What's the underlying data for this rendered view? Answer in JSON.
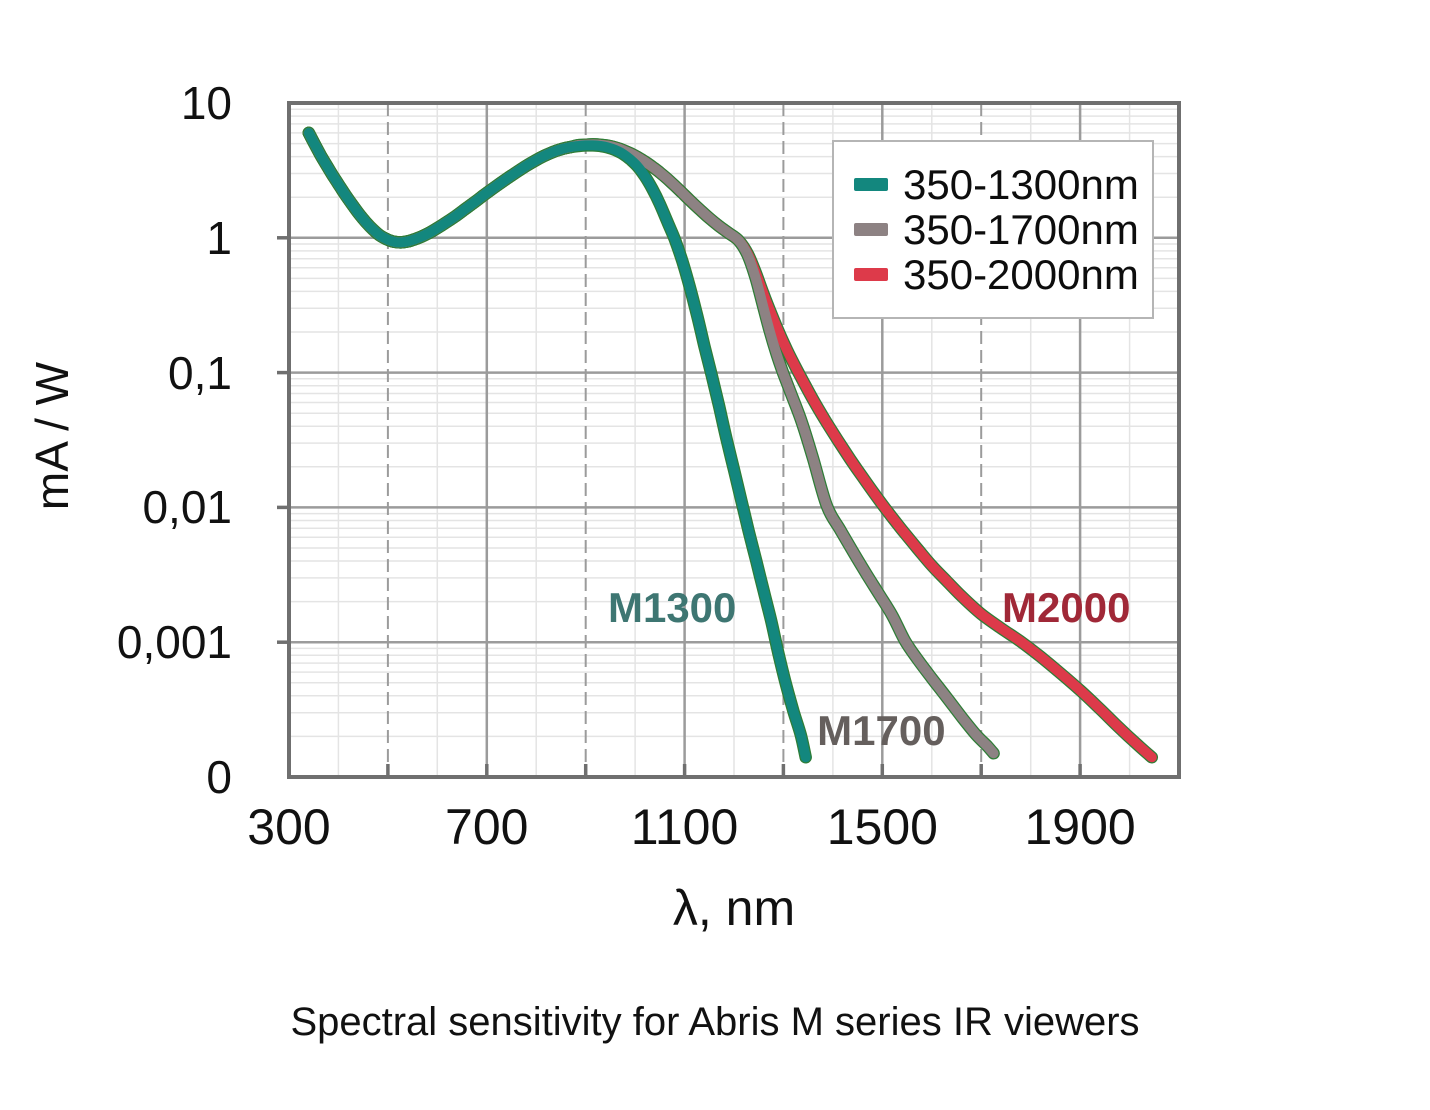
{
  "caption": "Spectral sensitivity for Abris M series IR viewers",
  "chart_data": {
    "type": "line",
    "title": "",
    "x_axis_title": "λ, nm",
    "y_axis_title": "mA / W",
    "y_scale": "log",
    "x_range_nm": [
      300,
      2100
    ],
    "y_range": [
      0.0001,
      10
    ],
    "x_ticks": [
      "300",
      "700",
      "1100",
      "1500",
      "1900"
    ],
    "x_tick_values": [
      300,
      700,
      1100,
      1500,
      1900
    ],
    "y_ticks": [
      "10",
      "1",
      "0,1",
      "0,01",
      "0,001",
      "0"
    ],
    "y_tick_values": [
      10,
      1,
      0.1,
      0.01,
      0.001,
      0.0001
    ],
    "grid": {
      "x_major_nm": [
        700,
        1100,
        1500,
        1900
      ],
      "x_dashed_nm": [
        500,
        900,
        1300,
        1700
      ],
      "x_minor_nm": [
        400,
        600,
        800,
        1000,
        1200,
        1400,
        1600,
        1800,
        2000
      ],
      "y_major": [
        1,
        0.1,
        0.01,
        0.001
      ]
    },
    "axis_ticks": {
      "x_nm": [
        500,
        700,
        900,
        1100,
        1300,
        1500,
        1700,
        1900
      ],
      "y": [
        1,
        0.1,
        0.01,
        0.001
      ]
    },
    "colors": {
      "grid_major": "#9b9b9b",
      "grid_dashed": "#9b9b9b",
      "grid_minor": "#e4e4e4",
      "frame": "#6f6f6f",
      "text": "#111111",
      "curve_under_edge": "#2e7d36"
    },
    "legend": {
      "position": "top-right"
    },
    "series": [
      {
        "name": "M1300",
        "legend_label": "350-1300nm",
        "color": "#13877e",
        "label_color": "#3e7672",
        "points": [
          [
            340,
            6.0
          ],
          [
            352,
            4.95
          ],
          [
            364,
            4.1
          ],
          [
            376,
            3.45
          ],
          [
            388,
            2.92
          ],
          [
            400,
            2.5
          ],
          [
            414,
            2.08
          ],
          [
            428,
            1.76
          ],
          [
            442,
            1.5
          ],
          [
            456,
            1.3
          ],
          [
            470,
            1.15
          ],
          [
            484,
            1.04
          ],
          [
            498,
            0.975
          ],
          [
            512,
            0.935
          ],
          [
            526,
            0.925
          ],
          [
            540,
            0.94
          ],
          [
            554,
            0.975
          ],
          [
            568,
            1.02
          ],
          [
            582,
            1.08
          ],
          [
            600,
            1.18
          ],
          [
            618,
            1.3
          ],
          [
            636,
            1.44
          ],
          [
            654,
            1.61
          ],
          [
            672,
            1.8
          ],
          [
            690,
            2.02
          ],
          [
            708,
            2.26
          ],
          [
            726,
            2.52
          ],
          [
            744,
            2.8
          ],
          [
            762,
            3.1
          ],
          [
            780,
            3.42
          ],
          [
            798,
            3.74
          ],
          [
            816,
            4.05
          ],
          [
            834,
            4.33
          ],
          [
            852,
            4.56
          ],
          [
            870,
            4.72
          ],
          [
            885,
            4.8
          ],
          [
            900,
            4.85
          ],
          [
            915,
            4.85
          ],
          [
            930,
            4.8
          ],
          [
            945,
            4.68
          ],
          [
            960,
            4.48
          ],
          [
            975,
            4.2
          ],
          [
            990,
            3.82
          ],
          [
            1005,
            3.38
          ],
          [
            1020,
            2.85
          ],
          [
            1035,
            2.3
          ],
          [
            1050,
            1.78
          ],
          [
            1065,
            1.32
          ],
          [
            1080,
            0.98
          ],
          [
            1095,
            0.68
          ],
          [
            1110,
            0.44
          ],
          [
            1125,
            0.27
          ],
          [
            1140,
            0.158
          ],
          [
            1155,
            0.095
          ],
          [
            1170,
            0.056
          ],
          [
            1185,
            0.032
          ],
          [
            1200,
            0.019
          ],
          [
            1215,
            0.0112
          ],
          [
            1230,
            0.0066
          ],
          [
            1245,
            0.004
          ],
          [
            1260,
            0.0024
          ],
          [
            1275,
            0.00145
          ],
          [
            1290,
            0.00082
          ],
          [
            1305,
            0.00049
          ],
          [
            1320,
            0.00031
          ],
          [
            1335,
            0.000205
          ],
          [
            1345,
            0.00014
          ]
        ]
      },
      {
        "name": "M1700",
        "legend_label": "350-1700nm",
        "color": "#8d8283",
        "label_color": "#655f5d",
        "points": [
          [
            340,
            6.0
          ],
          [
            352,
            4.95
          ],
          [
            364,
            4.1
          ],
          [
            376,
            3.45
          ],
          [
            388,
            2.92
          ],
          [
            400,
            2.5
          ],
          [
            414,
            2.08
          ],
          [
            428,
            1.76
          ],
          [
            442,
            1.5
          ],
          [
            456,
            1.3
          ],
          [
            470,
            1.15
          ],
          [
            484,
            1.04
          ],
          [
            498,
            0.975
          ],
          [
            512,
            0.935
          ],
          [
            526,
            0.925
          ],
          [
            540,
            0.94
          ],
          [
            554,
            0.975
          ],
          [
            568,
            1.02
          ],
          [
            582,
            1.08
          ],
          [
            600,
            1.18
          ],
          [
            618,
            1.3
          ],
          [
            636,
            1.44
          ],
          [
            654,
            1.61
          ],
          [
            672,
            1.8
          ],
          [
            690,
            2.02
          ],
          [
            708,
            2.26
          ],
          [
            726,
            2.52
          ],
          [
            744,
            2.8
          ],
          [
            762,
            3.1
          ],
          [
            780,
            3.42
          ],
          [
            798,
            3.74
          ],
          [
            816,
            4.05
          ],
          [
            834,
            4.33
          ],
          [
            852,
            4.56
          ],
          [
            870,
            4.72
          ],
          [
            885,
            4.86
          ],
          [
            900,
            4.9
          ],
          [
            915,
            4.93
          ],
          [
            930,
            4.9
          ],
          [
            945,
            4.82
          ],
          [
            960,
            4.68
          ],
          [
            975,
            4.48
          ],
          [
            990,
            4.24
          ],
          [
            1005,
            3.97
          ],
          [
            1020,
            3.67
          ],
          [
            1035,
            3.36
          ],
          [
            1050,
            3.05
          ],
          [
            1065,
            2.74
          ],
          [
            1080,
            2.44
          ],
          [
            1095,
            2.16
          ],
          [
            1110,
            1.91
          ],
          [
            1130,
            1.63
          ],
          [
            1150,
            1.4
          ],
          [
            1170,
            1.22
          ],
          [
            1190,
            1.08
          ],
          [
            1210,
            0.95
          ],
          [
            1228,
            0.74
          ],
          [
            1244,
            0.5
          ],
          [
            1258,
            0.32
          ],
          [
            1272,
            0.205
          ],
          [
            1286,
            0.138
          ],
          [
            1300,
            0.098
          ],
          [
            1318,
            0.066
          ],
          [
            1338,
            0.042
          ],
          [
            1360,
            0.023
          ],
          [
            1388,
            0.0102
          ],
          [
            1415,
            0.0068
          ],
          [
            1442,
            0.0046
          ],
          [
            1468,
            0.0032
          ],
          [
            1494,
            0.00225
          ],
          [
            1520,
            0.00158
          ],
          [
            1546,
            0.00102
          ],
          [
            1572,
            0.00074
          ],
          [
            1600,
            0.00054
          ],
          [
            1630,
            0.00039
          ],
          [
            1660,
            0.00028
          ],
          [
            1690,
            0.000205
          ],
          [
            1712,
            0.00017
          ],
          [
            1725,
            0.00015
          ]
        ]
      },
      {
        "name": "M2000",
        "legend_label": "350-2000nm",
        "color": "#dd3a4a",
        "label_color": "#a02837",
        "points": [
          [
            340,
            6.0
          ],
          [
            352,
            4.95
          ],
          [
            364,
            4.1
          ],
          [
            376,
            3.45
          ],
          [
            388,
            2.92
          ],
          [
            400,
            2.5
          ],
          [
            414,
            2.08
          ],
          [
            428,
            1.76
          ],
          [
            442,
            1.5
          ],
          [
            456,
            1.3
          ],
          [
            470,
            1.15
          ],
          [
            484,
            1.04
          ],
          [
            498,
            0.975
          ],
          [
            512,
            0.935
          ],
          [
            526,
            0.925
          ],
          [
            540,
            0.94
          ],
          [
            554,
            0.975
          ],
          [
            568,
            1.02
          ],
          [
            582,
            1.08
          ],
          [
            600,
            1.18
          ],
          [
            618,
            1.3
          ],
          [
            636,
            1.44
          ],
          [
            654,
            1.61
          ],
          [
            672,
            1.8
          ],
          [
            690,
            2.02
          ],
          [
            708,
            2.26
          ],
          [
            726,
            2.52
          ],
          [
            744,
            2.8
          ],
          [
            762,
            3.1
          ],
          [
            780,
            3.42
          ],
          [
            798,
            3.74
          ],
          [
            816,
            4.05
          ],
          [
            834,
            4.33
          ],
          [
            852,
            4.56
          ],
          [
            870,
            4.72
          ],
          [
            885,
            4.86
          ],
          [
            900,
            4.9
          ],
          [
            915,
            4.93
          ],
          [
            930,
            4.9
          ],
          [
            945,
            4.82
          ],
          [
            960,
            4.68
          ],
          [
            975,
            4.48
          ],
          [
            990,
            4.24
          ],
          [
            1005,
            3.97
          ],
          [
            1020,
            3.67
          ],
          [
            1035,
            3.36
          ],
          [
            1050,
            3.05
          ],
          [
            1065,
            2.74
          ],
          [
            1080,
            2.44
          ],
          [
            1095,
            2.16
          ],
          [
            1110,
            1.91
          ],
          [
            1130,
            1.63
          ],
          [
            1150,
            1.4
          ],
          [
            1170,
            1.22
          ],
          [
            1190,
            1.08
          ],
          [
            1210,
            0.95
          ],
          [
            1228,
            0.76
          ],
          [
            1244,
            0.55
          ],
          [
            1260,
            0.38
          ],
          [
            1276,
            0.27
          ],
          [
            1292,
            0.195
          ],
          [
            1308,
            0.145
          ],
          [
            1324,
            0.111
          ],
          [
            1340,
            0.086
          ],
          [
            1360,
            0.063
          ],
          [
            1385,
            0.044
          ],
          [
            1410,
            0.0315
          ],
          [
            1435,
            0.0228
          ],
          [
            1460,
            0.0168
          ],
          [
            1485,
            0.0125
          ],
          [
            1510,
            0.0094
          ],
          [
            1540,
            0.0068
          ],
          [
            1570,
            0.005
          ],
          [
            1600,
            0.0037
          ],
          [
            1630,
            0.00285
          ],
          [
            1660,
            0.0022
          ],
          [
            1700,
            0.00162
          ],
          [
            1740,
            0.00127
          ],
          [
            1780,
            0.00101
          ],
          [
            1820,
            0.00078
          ],
          [
            1860,
            0.00059
          ],
          [
            1900,
            0.00044
          ],
          [
            1940,
            0.00032
          ],
          [
            1980,
            0.00023
          ],
          [
            2015,
            0.000175
          ],
          [
            2045,
            0.00014
          ]
        ]
      }
    ],
    "curve_labels": [
      {
        "text": "M1300",
        "color": "#3e7672",
        "x_nm": 1075,
        "y_value": 0.0018
      },
      {
        "text": "M1700",
        "color": "#655f5d",
        "x_nm": 1498,
        "y_value": 0.00022
      },
      {
        "text": "M2000",
        "color": "#a02837",
        "x_nm": 1872,
        "y_value": 0.0018
      }
    ]
  }
}
